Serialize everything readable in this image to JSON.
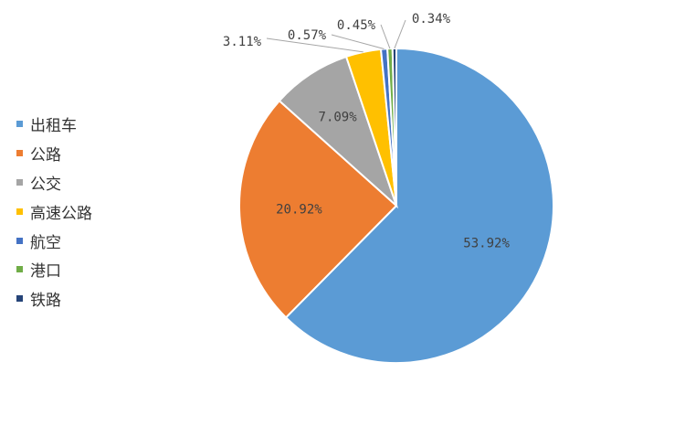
{
  "chart_data": {
    "type": "pie",
    "categories": [
      "出租车",
      "公路",
      "公交",
      "高速公路",
      "航空",
      "港口",
      "铁路"
    ],
    "values": [
      53.92,
      20.92,
      7.09,
      3.11,
      0.57,
      0.45,
      0.34
    ],
    "value_labels": [
      "53.92%",
      "20.92%",
      "7.09%",
      "3.11%",
      "0.57%",
      "0.45%",
      "0.34%"
    ],
    "colors": [
      "#5B9BD5",
      "#ED7D31",
      "#A5A5A5",
      "#FFC000",
      "#4472C4",
      "#70AD47",
      "#264478"
    ],
    "legend_position": "left"
  }
}
